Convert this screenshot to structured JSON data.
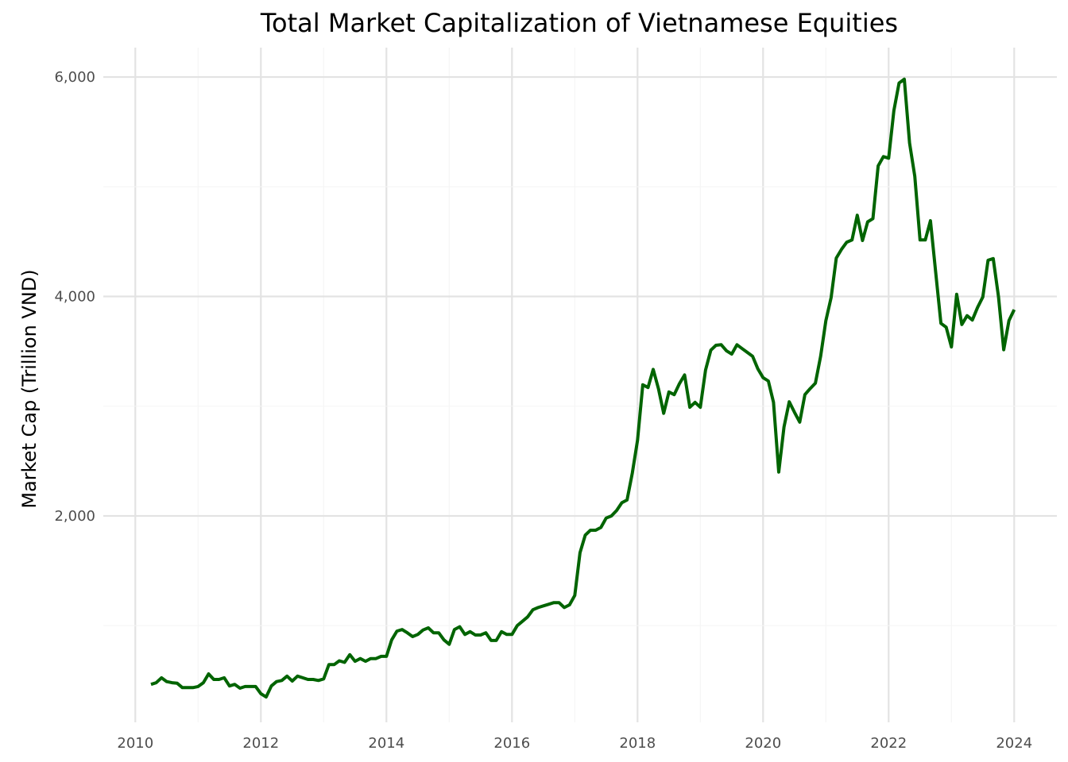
{
  "chart_data": {
    "type": "line",
    "title": "Total Market Capitalization of Vietnamese Equities",
    "xlabel": "",
    "ylabel": "Market Cap (Trillion VND)",
    "x_ticks": [
      "2010",
      "2012",
      "2014",
      "2016",
      "2018",
      "2020",
      "2022",
      "2024"
    ],
    "y_ticks": [
      "2,000",
      "4,000",
      "6,000"
    ],
    "y_tick_values": [
      2000,
      4000,
      6000
    ],
    "x_tick_values": [
      2010,
      2012,
      2014,
      2016,
      2018,
      2020,
      2022,
      2024
    ],
    "xlim": [
      2009.49,
      2024.68
    ],
    "ylim": [
      119,
      6268
    ],
    "grid": true,
    "line_color": "#006400",
    "start_month": "2010-03",
    "frequency": "monthly",
    "values": [
      465,
      480,
      525,
      490,
      480,
      475,
      435,
      435,
      435,
      445,
      480,
      560,
      510,
      510,
      525,
      450,
      465,
      430,
      445,
      445,
      445,
      380,
      350,
      450,
      490,
      500,
      540,
      495,
      540,
      525,
      510,
      510,
      500,
      515,
      645,
      645,
      680,
      665,
      735,
      675,
      700,
      675,
      700,
      700,
      720,
      720,
      870,
      950,
      965,
      935,
      900,
      920,
      960,
      980,
      935,
      935,
      870,
      830,
      965,
      990,
      920,
      945,
      915,
      915,
      935,
      865,
      865,
      945,
      920,
      920,
      1000,
      1040,
      1080,
      1145,
      1165,
      1180,
      1195,
      1210,
      1210,
      1165,
      1190,
      1275,
      1665,
      1825,
      1870,
      1870,
      1895,
      1980,
      2000,
      2050,
      2120,
      2145,
      2390,
      2690,
      3195,
      3170,
      3335,
      3160,
      2935,
      3130,
      3105,
      3205,
      3285,
      2990,
      3035,
      2990,
      3330,
      3510,
      3555,
      3560,
      3505,
      3475,
      3560,
      3525,
      3490,
      3455,
      3340,
      3260,
      3230,
      3035,
      2400,
      2810,
      3040,
      2945,
      2855,
      3105,
      3160,
      3210,
      3455,
      3780,
      3990,
      4350,
      4430,
      4495,
      4515,
      4740,
      4510,
      4680,
      4710,
      5190,
      5275,
      5260,
      5695,
      5945,
      5980,
      5400,
      5095,
      4515,
      4515,
      4690,
      4220,
      3755,
      3720,
      3540,
      4020,
      3745,
      3825,
      3785,
      3900,
      3995,
      4330,
      4345,
      4000,
      3515,
      3780,
      3880
    ]
  }
}
